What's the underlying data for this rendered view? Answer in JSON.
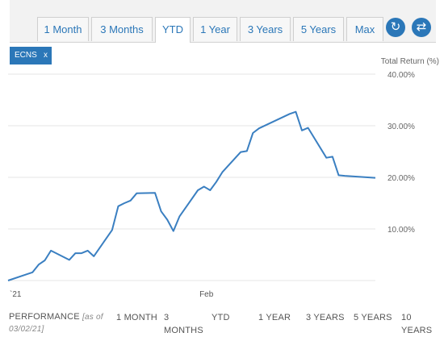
{
  "tabs": [
    {
      "label": "1 Month"
    },
    {
      "label": "3 Months"
    },
    {
      "label": "YTD",
      "active": true
    },
    {
      "label": "1 Year"
    },
    {
      "label": "3 Years"
    },
    {
      "label": "5 Years"
    },
    {
      "label": "Max"
    }
  ],
  "buttons": {
    "refresh_icon": "refresh-icon",
    "swap_icon": "swap-icon"
  },
  "legend_chip": {
    "label": "ECNS",
    "close": "x"
  },
  "colors": {
    "accent": "#2b77b8",
    "line": "#3a7fc1",
    "grid": "#e4e4e4"
  },
  "chart_data": {
    "type": "line",
    "ylabel": "Total Return (%)",
    "ylim": [
      0,
      40
    ],
    "yticks": [
      {
        "value": 10,
        "label": "10.00%"
      },
      {
        "value": 20,
        "label": "20.00%"
      },
      {
        "value": 30,
        "label": "30.00%"
      },
      {
        "value": 40,
        "label": "40.00%"
      }
    ],
    "xticks": [
      {
        "date": "2021-01-01",
        "label": "`21"
      },
      {
        "date": "2021-02-01",
        "label": "Feb"
      }
    ],
    "xlim": [
      "2021-01-01",
      "2021-03-02"
    ],
    "grid": true,
    "series": [
      {
        "values": [
          [
            "2021-01-01",
            0.0
          ],
          [
            "2021-01-04",
            1.2
          ],
          [
            "2021-01-05",
            1.6
          ],
          [
            "2021-01-06",
            3.1
          ],
          [
            "2021-01-07",
            3.9
          ],
          [
            "2021-01-08",
            5.8
          ],
          [
            "2021-01-11",
            4.0
          ],
          [
            "2021-01-12",
            5.3
          ],
          [
            "2021-01-13",
            5.3
          ],
          [
            "2021-01-14",
            5.8
          ],
          [
            "2021-01-15",
            4.7
          ],
          [
            "2021-01-18",
            9.8
          ],
          [
            "2021-01-19",
            14.4
          ],
          [
            "2021-01-20",
            15.0
          ],
          [
            "2021-01-21",
            15.5
          ],
          [
            "2021-01-22",
            16.9
          ],
          [
            "2021-01-25",
            17.0
          ],
          [
            "2021-01-26",
            13.4
          ],
          [
            "2021-01-27",
            11.8
          ],
          [
            "2021-01-28",
            9.6
          ],
          [
            "2021-01-29",
            12.4
          ],
          [
            "2021-02-01",
            17.5
          ],
          [
            "2021-02-02",
            18.2
          ],
          [
            "2021-02-03",
            17.5
          ],
          [
            "2021-02-04",
            19.1
          ],
          [
            "2021-02-05",
            21.0
          ],
          [
            "2021-02-08",
            24.9
          ],
          [
            "2021-02-09",
            25.1
          ],
          [
            "2021-02-10",
            28.6
          ],
          [
            "2021-02-11",
            29.5
          ],
          [
            "2021-02-16",
            32.3
          ],
          [
            "2021-02-17",
            32.7
          ],
          [
            "2021-02-18",
            29.1
          ],
          [
            "2021-02-19",
            29.6
          ],
          [
            "2021-02-22",
            23.8
          ],
          [
            "2021-02-23",
            24.0
          ],
          [
            "2021-02-24",
            20.4
          ],
          [
            "2021-02-25",
            20.3
          ],
          [
            "2021-03-02",
            19.9
          ]
        ]
      }
    ]
  },
  "performance": {
    "label": "PERFORMANCE",
    "as_of": "[as of 03/02/21]",
    "columns": [
      "1 MONTH",
      "3 MONTHS",
      "YTD",
      "1 YEAR",
      "3 YEARS",
      "5 YEARS",
      "10 YEARS"
    ]
  }
}
